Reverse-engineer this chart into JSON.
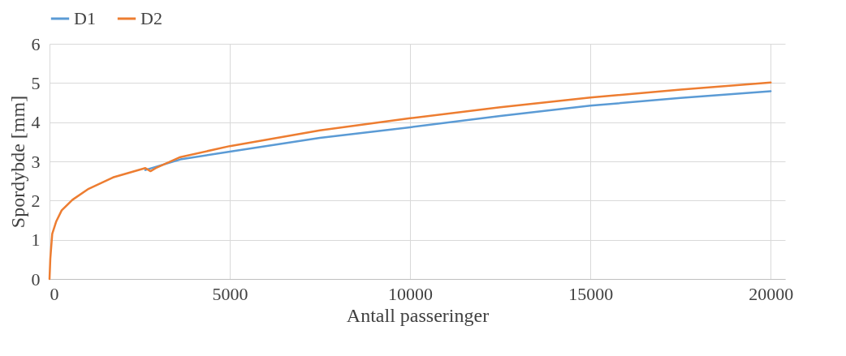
{
  "chart_data": {
    "type": "line",
    "xlabel": "Antall passeringer",
    "ylabel": "Spordybde [mm]",
    "xlim": [
      0,
      20400
    ],
    "ylim": [
      0,
      6
    ],
    "xticks": [
      0,
      5000,
      10000,
      15000,
      20000
    ],
    "yticks": [
      0,
      1,
      2,
      3,
      4,
      5,
      6
    ],
    "grid": true,
    "legend": "top",
    "marker": "none",
    "line_style": "solid",
    "series": [
      {
        "name": "D1",
        "color": "#5b9bd5",
        "x": [
          2657,
          3630,
          5000,
          7500,
          10000,
          12500,
          15000,
          17500,
          20000
        ],
        "values": [
          2.78,
          3.05,
          3.25,
          3.6,
          3.87,
          4.16,
          4.42,
          4.62,
          4.79
        ]
      },
      {
        "name": "D2",
        "color": "#ed7d31",
        "x": [
          0,
          22,
          75,
          187,
          337,
          636,
          1085,
          1760,
          2657,
          2800,
          2950,
          3630,
          5000,
          7500,
          10000,
          12500,
          15000,
          17500,
          20000
        ],
        "values": [
          0,
          0.52,
          1.15,
          1.47,
          1.75,
          2.02,
          2.3,
          2.59,
          2.83,
          2.75,
          2.83,
          3.11,
          3.39,
          3.79,
          4.1,
          4.38,
          4.63,
          4.83,
          5.01
        ]
      }
    ]
  }
}
